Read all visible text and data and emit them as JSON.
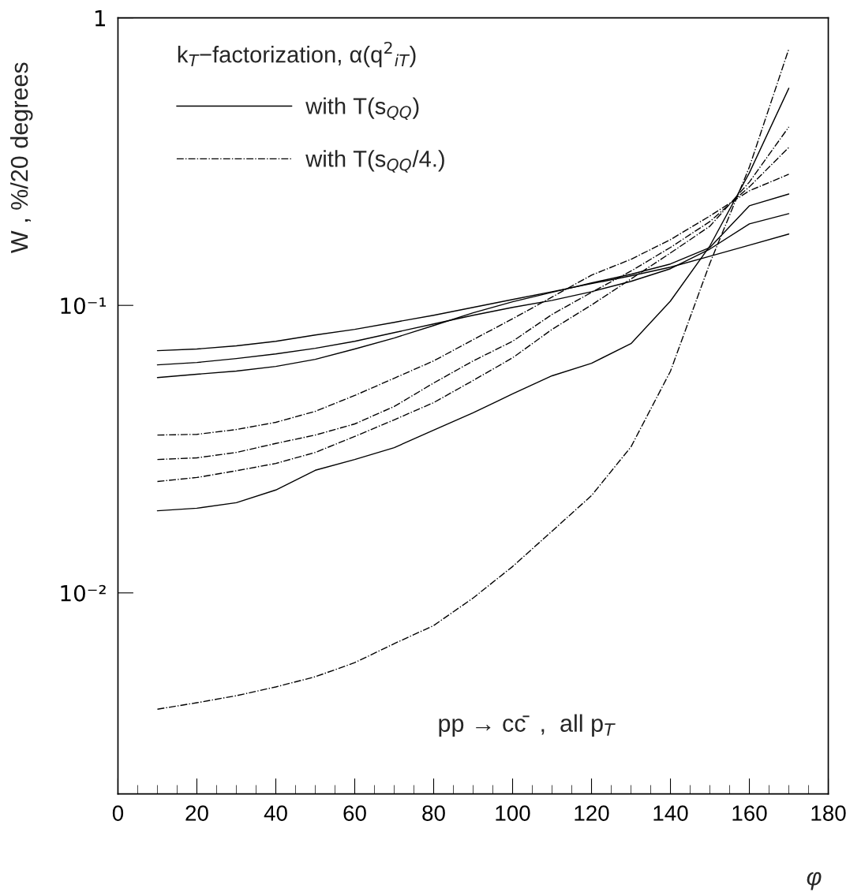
{
  "chart_data": {
    "type": "line",
    "xlabel": "φ",
    "ylabel": "W , %/20 degrees",
    "legend_title": "k$_{T}$−factorization, α(q$^{2}$$_{iT}$)",
    "annotations": [
      "pp → cc̄  ,  all p$_{T}$"
    ],
    "x": [
      10,
      20,
      30,
      40,
      50,
      60,
      70,
      80,
      90,
      100,
      110,
      120,
      130,
      140,
      150,
      160,
      170
    ],
    "series": [
      {
        "name": "with T(s$_{QQ}$)",
        "color": "#000000",
        "line_style": "solid",
        "values": [
          0.0696,
          0.0705,
          0.0723,
          0.075,
          0.0789,
          0.0825,
          0.0873,
          0.0924,
          0.0984,
          0.1048,
          0.1116,
          0.119,
          0.1267,
          0.1358,
          0.1483,
          0.162,
          0.177
        ]
      },
      {
        "color": "#000000",
        "line_style": "solid",
        "values": [
          0.0621,
          0.0633,
          0.0653,
          0.0678,
          0.0709,
          0.075,
          0.0804,
          0.0862,
          0.0924,
          0.0984,
          0.1041,
          0.1116,
          0.1212,
          0.1341,
          0.157,
          0.192,
          0.2085
        ]
      },
      {
        "color": "#000000",
        "line_style": "solid",
        "values": [
          0.0561,
          0.0576,
          0.0591,
          0.0613,
          0.0649,
          0.0705,
          0.077,
          0.0851,
          0.0942,
          0.1029,
          0.111,
          0.1197,
          0.1283,
          0.1393,
          0.159,
          0.222,
          0.244
        ]
      },
      {
        "color": "#000000",
        "line_style": "solid",
        "values": [
          0.0193,
          0.0197,
          0.0206,
          0.0228,
          0.0267,
          0.0291,
          0.032,
          0.0368,
          0.0423,
          0.0492,
          0.0569,
          0.0629,
          0.0736,
          0.1035,
          0.161,
          0.289,
          0.569
        ]
      },
      {
        "name": "with T(s$_{QQ}$/4.)",
        "color": "#000000",
        "line_style": "dashdot",
        "values": [
          0.0354,
          0.0356,
          0.037,
          0.0392,
          0.0428,
          0.0486,
          0.0558,
          0.0641,
          0.076,
          0.0898,
          0.1069,
          0.1274,
          0.1446,
          0.1693,
          0.2046,
          0.2503,
          0.2858
        ]
      },
      {
        "color": "#000000",
        "line_style": "dashdot",
        "values": [
          0.0291,
          0.0295,
          0.0308,
          0.0331,
          0.0354,
          0.0387,
          0.0445,
          0.0537,
          0.0641,
          0.075,
          0.093,
          0.111,
          0.1316,
          0.159,
          0.1957,
          0.2584,
          0.3542
        ]
      },
      {
        "color": "#000000",
        "line_style": "dashdot",
        "values": [
          0.0244,
          0.0252,
          0.0266,
          0.0282,
          0.0308,
          0.035,
          0.04,
          0.0459,
          0.0548,
          0.0657,
          0.0825,
          0.1003,
          0.1235,
          0.1521,
          0.1885,
          0.2684,
          0.4174
        ]
      },
      {
        "color": "#000000",
        "line_style": "dashdot",
        "values": [
          0.00394,
          0.00415,
          0.00439,
          0.00471,
          0.00511,
          0.00572,
          0.00666,
          0.0077,
          0.0096,
          0.01235,
          0.0164,
          0.0218,
          0.0322,
          0.059,
          0.1402,
          0.3026,
          0.7795
        ]
      }
    ],
    "log": "y",
    "xlim": [
      0,
      180
    ],
    "xticks": [
      0,
      20,
      40,
      60,
      80,
      100,
      120,
      140,
      160,
      180
    ],
    "ylim": [
      0.002,
      1
    ],
    "yticks": [
      1,
      {
        "value": 0.1,
        "label": "10⁻¹"
      },
      {
        "value": 0.01,
        "label": "10⁻²"
      }
    ],
    "grid": false,
    "legend": "top left"
  }
}
